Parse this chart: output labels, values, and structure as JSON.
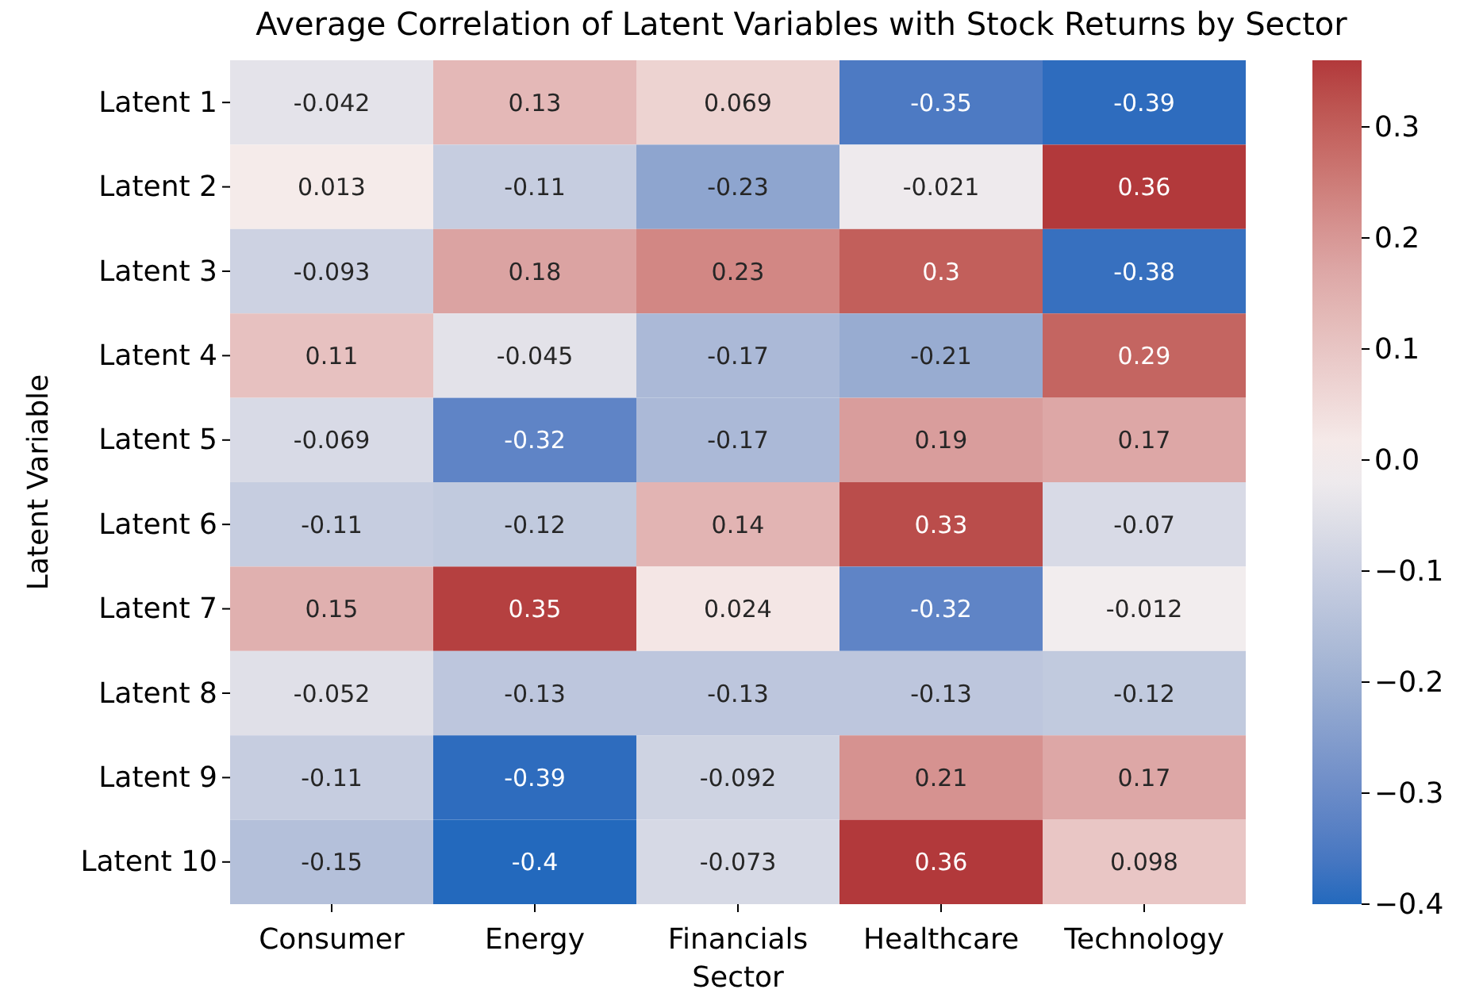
{
  "chart_data": {
    "type": "heatmap",
    "title": "Average Correlation of Latent Variables with Stock Returns by Sector",
    "xlabel": "Sector",
    "ylabel": "Latent Variable",
    "categories": [
      "Consumer",
      "Energy",
      "Financials",
      "Healthcare",
      "Technology"
    ],
    "y_categories": [
      "Latent 1",
      "Latent 2",
      "Latent 3",
      "Latent 4",
      "Latent 5",
      "Latent 6",
      "Latent 7",
      "Latent 8",
      "Latent 9",
      "Latent 10"
    ],
    "cells": [
      [
        -0.042,
        0.13,
        0.069,
        -0.35,
        -0.39
      ],
      [
        0.013,
        -0.11,
        -0.23,
        -0.021,
        0.36
      ],
      [
        -0.093,
        0.18,
        0.23,
        0.3,
        -0.38
      ],
      [
        0.11,
        -0.045,
        -0.17,
        -0.21,
        0.29
      ],
      [
        -0.069,
        -0.32,
        -0.17,
        0.19,
        0.17
      ],
      [
        -0.11,
        -0.12,
        0.14,
        0.33,
        -0.07
      ],
      [
        0.15,
        0.35,
        0.024,
        -0.32,
        -0.012
      ],
      [
        -0.052,
        -0.13,
        -0.13,
        -0.13,
        -0.12
      ],
      [
        -0.11,
        -0.39,
        -0.092,
        0.21,
        0.17
      ],
      [
        -0.15,
        -0.4,
        -0.073,
        0.36,
        0.098
      ]
    ],
    "data_labels": true,
    "clim": [
      -0.4,
      0.36
    ],
    "cticks": [
      -0.4,
      -0.3,
      -0.2,
      -0.1,
      {
        "value": 0,
        "label": "0.0"
      },
      0.1,
      0.2,
      0.3
    ]
  }
}
